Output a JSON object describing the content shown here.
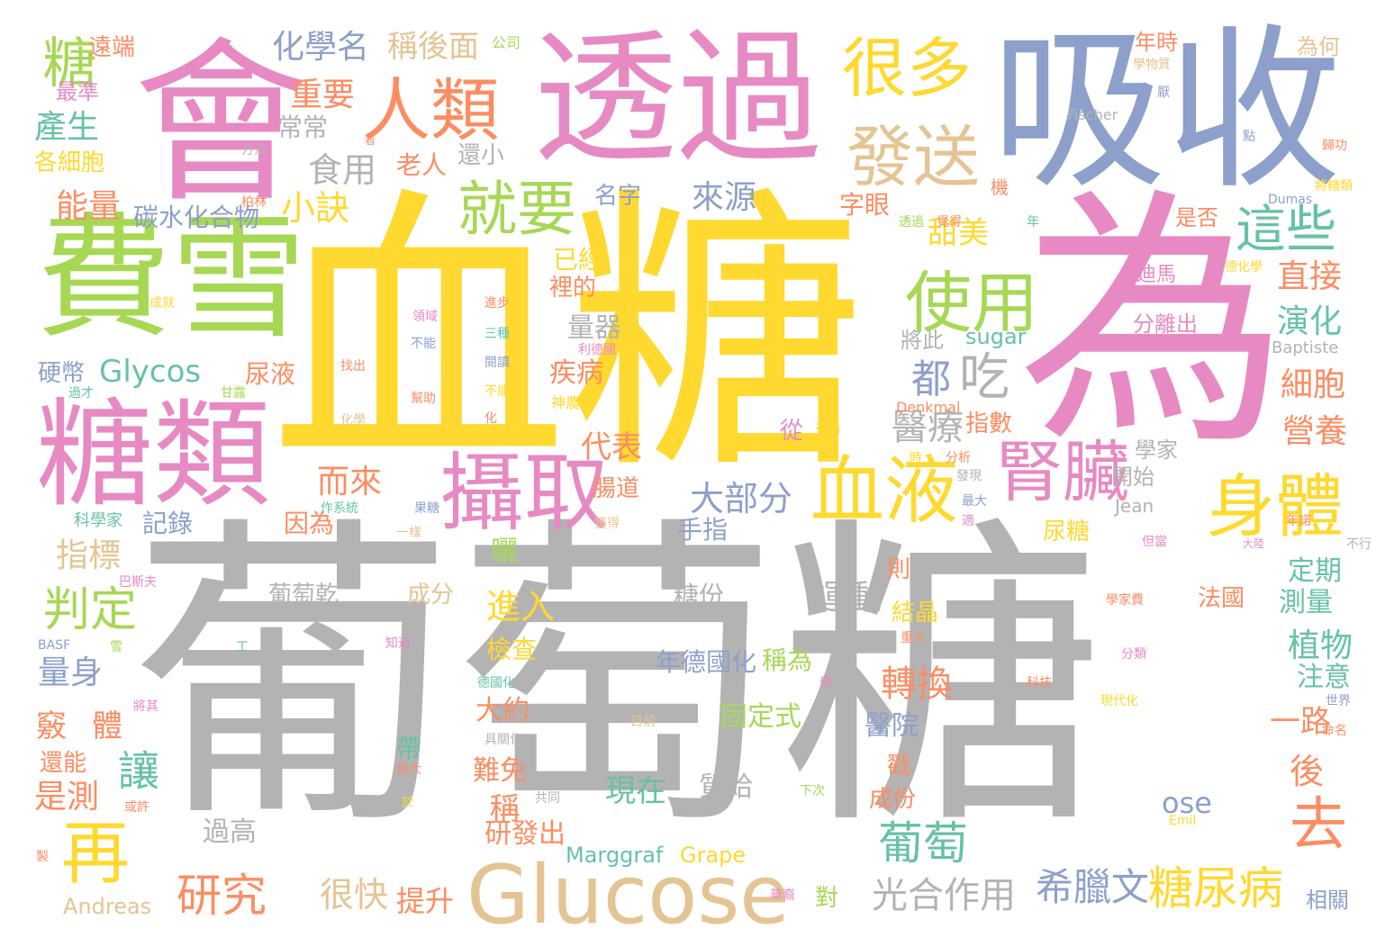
{
  "palette": {
    "gray": "#b3b3b3",
    "yellow": "#ffd92f",
    "pink": "#e78ac3",
    "blue": "#8da0cb",
    "green": "#a6d854",
    "orange": "#fc8d62",
    "teal": "#66c2a5",
    "tan": "#e5c494"
  },
  "words": [
    {
      "text": "葡萄糖",
      "color": "gray"
    },
    {
      "text": "血糖",
      "color": "yellow"
    },
    {
      "text": "為",
      "color": "pink"
    },
    {
      "text": "吸收",
      "color": "blue"
    },
    {
      "text": "透過",
      "color": "pink"
    },
    {
      "text": "會",
      "color": "pink"
    },
    {
      "text": "費雪",
      "color": "green"
    },
    {
      "text": "糖類",
      "color": "pink"
    },
    {
      "text": "Glucose",
      "color": "tan"
    },
    {
      "text": "攝取",
      "color": "pink"
    },
    {
      "text": "血液",
      "color": "yellow"
    },
    {
      "text": "腎臟",
      "color": "pink"
    },
    {
      "text": "身體",
      "color": "yellow"
    },
    {
      "text": "人類",
      "color": "orange"
    },
    {
      "text": "很多",
      "color": "yellow"
    },
    {
      "text": "發送",
      "color": "tan"
    },
    {
      "text": "使用",
      "color": "green"
    },
    {
      "text": "就要",
      "color": "green"
    },
    {
      "text": "這些",
      "color": "teal"
    },
    {
      "text": "再",
      "color": "yellow"
    },
    {
      "text": "去",
      "color": "orange"
    },
    {
      "text": "糖尿病",
      "color": "yellow"
    },
    {
      "text": "研究",
      "color": "orange"
    },
    {
      "text": "葡萄",
      "color": "teal"
    },
    {
      "text": "吃",
      "color": "gray"
    },
    {
      "text": "都",
      "color": "blue"
    },
    {
      "text": "糖",
      "color": "green"
    },
    {
      "text": "化學名",
      "color": "blue"
    },
    {
      "text": "稱後面",
      "color": "tan"
    },
    {
      "text": "重要",
      "color": "orange"
    },
    {
      "text": "食用",
      "color": "gray"
    },
    {
      "text": "小訣",
      "color": "yellow"
    },
    {
      "text": "來源",
      "color": "blue"
    },
    {
      "text": "甜美",
      "color": "yellow"
    },
    {
      "text": "字眼",
      "color": "orange"
    },
    {
      "text": "直接",
      "color": "orange"
    },
    {
      "text": "演化",
      "color": "teal"
    },
    {
      "text": "細胞",
      "color": "orange"
    },
    {
      "text": "營養",
      "color": "orange"
    },
    {
      "text": "Glycos",
      "color": "teal"
    },
    {
      "text": "產生",
      "color": "teal"
    },
    {
      "text": "能量",
      "color": "orange"
    },
    {
      "text": "碳水化合物",
      "color": "blue"
    },
    {
      "text": "判定",
      "color": "green"
    },
    {
      "text": "指標",
      "color": "tan"
    },
    {
      "text": "量身",
      "color": "blue"
    },
    {
      "text": "讓",
      "color": "teal"
    },
    {
      "text": "是測",
      "color": "orange"
    },
    {
      "text": "大部分",
      "color": "blue"
    },
    {
      "text": "醫療",
      "color": "gray"
    },
    {
      "text": "而來",
      "color": "orange"
    },
    {
      "text": "代表",
      "color": "orange"
    },
    {
      "text": "運動",
      "color": "gray"
    },
    {
      "text": "轉換",
      "color": "orange"
    },
    {
      "text": "希臘文",
      "color": "blue"
    },
    {
      "text": "光合作用",
      "color": "gray"
    },
    {
      "text": "提升",
      "color": "orange"
    },
    {
      "text": "很快",
      "color": "tan"
    },
    {
      "text": "進入",
      "color": "yellow"
    },
    {
      "text": "植物",
      "color": "teal"
    },
    {
      "text": "測量",
      "color": "teal"
    },
    {
      "text": "定期",
      "color": "teal"
    },
    {
      "text": "注意",
      "color": "teal"
    },
    {
      "text": "一路",
      "color": "orange"
    },
    {
      "text": "後",
      "color": "orange"
    },
    {
      "text": "年德國化",
      "color": "blue"
    },
    {
      "text": "稱為",
      "color": "green"
    },
    {
      "text": "固定式",
      "color": "green"
    },
    {
      "text": "醫院",
      "color": "blue"
    },
    {
      "text": "現在",
      "color": "teal"
    },
    {
      "text": "質給",
      "color": "gray"
    },
    {
      "text": "難免",
      "color": "orange"
    },
    {
      "text": "研發出",
      "color": "orange"
    },
    {
      "text": "Marggraf",
      "color": "teal"
    },
    {
      "text": "Grape",
      "color": "yellow"
    },
    {
      "text": "Andreas",
      "color": "tan"
    },
    {
      "text": "過高",
      "color": "gray"
    },
    {
      "text": "ose",
      "color": "blue"
    },
    {
      "text": "已經",
      "color": "yellow"
    },
    {
      "text": "裡的",
      "color": "orange"
    },
    {
      "text": "量器",
      "color": "gray"
    },
    {
      "text": "疾病",
      "color": "orange"
    },
    {
      "text": "遠端",
      "color": "orange"
    },
    {
      "text": "最準",
      "color": "pink"
    },
    {
      "text": "各細胞",
      "color": "yellow"
    },
    {
      "text": "老人",
      "color": "orange"
    },
    {
      "text": "還小",
      "color": "gray"
    },
    {
      "text": "常常",
      "color": "gray"
    },
    {
      "text": "名字",
      "color": "blue"
    },
    {
      "text": "將此",
      "color": "gray"
    },
    {
      "text": "sugar",
      "color": "teal"
    },
    {
      "text": "硬幣",
      "color": "blue"
    },
    {
      "text": "尿液",
      "color": "orange"
    },
    {
      "text": "記錄",
      "color": "blue"
    },
    {
      "text": "因為",
      "color": "orange"
    },
    {
      "text": "手指",
      "color": "blue"
    },
    {
      "text": "曬",
      "color": "green"
    },
    {
      "text": "葡萄乾",
      "color": "gray"
    },
    {
      "text": "糖份",
      "color": "gray"
    },
    {
      "text": "成分",
      "color": "tan"
    },
    {
      "text": "檢查",
      "color": "yellow"
    },
    {
      "text": "大約",
      "color": "orange"
    },
    {
      "text": "帶",
      "color": "teal"
    },
    {
      "text": "稱",
      "color": "orange"
    },
    {
      "text": "年時",
      "color": "orange"
    },
    {
      "text": "為何",
      "color": "tan"
    },
    {
      "text": "是否",
      "color": "orange"
    },
    {
      "text": "尿糖",
      "color": "yellow"
    },
    {
      "text": "指數",
      "color": "orange"
    },
    {
      "text": "開始",
      "color": "gray"
    },
    {
      "text": "學家",
      "color": "gray"
    },
    {
      "text": "結晶",
      "color": "yellow"
    },
    {
      "text": "法國",
      "color": "orange"
    },
    {
      "text": "成份",
      "color": "orange"
    },
    {
      "text": "則",
      "color": "orange"
    },
    {
      "text": "戳",
      "color": "orange"
    },
    {
      "text": "對",
      "color": "green"
    },
    {
      "text": "相關",
      "color": "blue"
    },
    {
      "text": "還能",
      "color": "orange"
    },
    {
      "text": "竅",
      "color": "orange"
    },
    {
      "text": "體",
      "color": "orange"
    },
    {
      "text": "從",
      "color": "pink"
    },
    {
      "text": "分離出",
      "color": "pink"
    },
    {
      "text": "迪馬",
      "color": "pink"
    },
    {
      "text": "Baptiste",
      "color": "gray"
    },
    {
      "text": "Jean",
      "color": "gray"
    },
    {
      "text": "腸道",
      "color": "orange"
    },
    {
      "text": "科學家",
      "color": "teal"
    },
    {
      "text": "公司",
      "color": "green"
    },
    {
      "text": "學物質",
      "color": "tan"
    },
    {
      "text": "Fischer",
      "color": "gray"
    },
    {
      "text": "厭",
      "color": "blue"
    },
    {
      "text": "點",
      "color": "blue"
    },
    {
      "text": "歸功",
      "color": "orange"
    },
    {
      "text": "將糖類",
      "color": "yellow"
    },
    {
      "text": "Dumas",
      "color": "blue"
    },
    {
      "text": "透過",
      "color": "green"
    },
    {
      "text": "覺得",
      "color": "orange"
    },
    {
      "text": "機",
      "color": "orange"
    },
    {
      "text": "年",
      "color": "teal"
    },
    {
      "text": "德化學",
      "color": "yellow"
    },
    {
      "text": "方法",
      "color": "gray"
    },
    {
      "text": "柏林",
      "color": "orange"
    },
    {
      "text": "成就",
      "color": "yellow"
    },
    {
      "text": "進步",
      "color": "orange"
    },
    {
      "text": "領域",
      "color": "pink"
    },
    {
      "text": "不能",
      "color": "blue"
    },
    {
      "text": "三種",
      "color": "teal"
    },
    {
      "text": "閱讀",
      "color": "blue"
    },
    {
      "text": "幫助",
      "color": "orange"
    },
    {
      "text": "不能",
      "color": "yellow"
    },
    {
      "text": "化學",
      "color": "tan"
    },
    {
      "text": "化",
      "color": "orange"
    },
    {
      "text": "找出",
      "color": "orange"
    },
    {
      "text": "甘露",
      "color": "green"
    },
    {
      "text": "過才",
      "color": "teal"
    },
    {
      "text": "神農氏",
      "color": "yellow"
    },
    {
      "text": "Denkmal",
      "color": "orange"
    },
    {
      "text": "有點",
      "color": "yellow"
    },
    {
      "text": "分析",
      "color": "orange"
    },
    {
      "text": "發現",
      "color": "gray"
    },
    {
      "text": "巴斯夫",
      "color": "pink"
    },
    {
      "text": "作系統",
      "color": "teal"
    },
    {
      "text": "果糖",
      "color": "blue"
    },
    {
      "text": "一樣",
      "color": "tan"
    },
    {
      "text": "獲得",
      "color": "tan"
    },
    {
      "text": "最大",
      "color": "blue"
    },
    {
      "text": "年諾",
      "color": "orange"
    },
    {
      "text": "但當",
      "color": "pink"
    },
    {
      "text": "大陸",
      "color": "pink"
    },
    {
      "text": "不行",
      "color": "gray"
    },
    {
      "text": "BASF",
      "color": "blue"
    },
    {
      "text": "雪",
      "color": "green"
    },
    {
      "text": "工",
      "color": "teal"
    },
    {
      "text": "知道",
      "color": "pink"
    },
    {
      "text": "重大",
      "color": "orange"
    },
    {
      "text": "學家費",
      "color": "orange"
    },
    {
      "text": "分類",
      "color": "pink"
    },
    {
      "text": "科技",
      "color": "orange"
    },
    {
      "text": "現代化",
      "color": "yellow"
    },
    {
      "text": "世界",
      "color": "blue"
    },
    {
      "text": "命名",
      "color": "orange"
    },
    {
      "text": "將其",
      "color": "pink"
    },
    {
      "text": "德國化",
      "color": "teal"
    },
    {
      "text": "具關化",
      "color": "gray"
    },
    {
      "text": "目前",
      "color": "tan"
    },
    {
      "text": "學",
      "color": "pink"
    },
    {
      "text": "很大",
      "color": "orange"
    },
    {
      "text": "共同",
      "color": "gray"
    },
    {
      "text": "於",
      "color": "yellow"
    },
    {
      "text": "下次",
      "color": "green"
    },
    {
      "text": "或許",
      "color": "orange"
    },
    {
      "text": "製",
      "color": "orange"
    },
    {
      "text": "華裔",
      "color": "pink"
    },
    {
      "text": "Emil",
      "color": "yellow"
    },
    {
      "text": "適",
      "color": "pink"
    },
    {
      "text": "時",
      "color": "yellow"
    },
    {
      "text": "看",
      "color": "orange"
    },
    {
      "text": "利德國",
      "color": "pink"
    }
  ]
}
